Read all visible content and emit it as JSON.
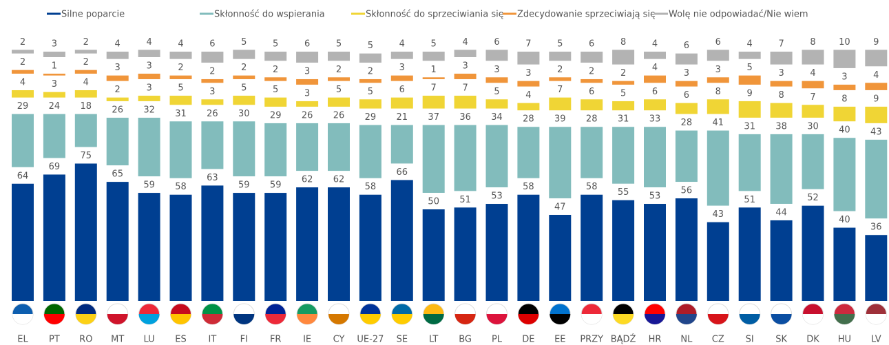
{
  "chart_data": {
    "type": "stacked_bar",
    "categories": [
      "EL",
      "PT",
      "RO",
      "MT",
      "LU",
      "ES",
      "IT",
      "FI",
      "FR",
      "IE",
      "CY",
      "UE-27",
      "SE",
      "LT",
      "BG",
      "PL",
      "DE",
      "EE",
      "PRZY",
      "BĄDŹ",
      "HR",
      "NL",
      "CZ",
      "SI",
      "SK",
      "DK",
      "HU",
      "LV"
    ],
    "series": [
      {
        "name": "Silne poparcie",
        "color": "#003f91",
        "values": [
          64,
          69,
          75,
          65,
          59,
          58,
          63,
          59,
          59,
          62,
          62,
          58,
          66,
          50,
          51,
          53,
          58,
          47,
          58,
          55,
          53,
          56,
          43,
          51,
          44,
          52,
          40,
          36
        ]
      },
      {
        "name": "Skłonność do wspierania",
        "color": "#82bcbc",
        "values": [
          29,
          24,
          18,
          26,
          32,
          31,
          26,
          30,
          29,
          26,
          26,
          29,
          21,
          37,
          36,
          34,
          28,
          39,
          28,
          31,
          33,
          28,
          41,
          31,
          38,
          30,
          40,
          43
        ]
      },
      {
        "name": "Skłonność do sprzeciwiania się",
        "color": "#f0d535",
        "values": [
          4,
          3,
          4,
          2,
          3,
          5,
          3,
          5,
          5,
          3,
          5,
          5,
          6,
          7,
          7,
          5,
          4,
          7,
          6,
          5,
          6,
          6,
          8,
          9,
          8,
          7,
          8,
          9
        ]
      },
      {
        "name": "Zdecydowanie sprzeciwiają się",
        "color": "#f0953a",
        "values": [
          2,
          1,
          2,
          3,
          3,
          2,
          2,
          2,
          2,
          3,
          2,
          2,
          3,
          1,
          3,
          3,
          3,
          2,
          2,
          2,
          4,
          3,
          3,
          5,
          3,
          4,
          3,
          4
        ]
      },
      {
        "name": "Wolę nie odpowiadać/Nie wiem",
        "color": "#b3b3b3",
        "values": [
          2,
          3,
          2,
          4,
          4,
          4,
          6,
          5,
          5,
          6,
          5,
          5,
          4,
          5,
          4,
          6,
          7,
          5,
          6,
          8,
          4,
          6,
          6,
          4,
          7,
          8,
          10,
          9
        ]
      }
    ]
  }
}
